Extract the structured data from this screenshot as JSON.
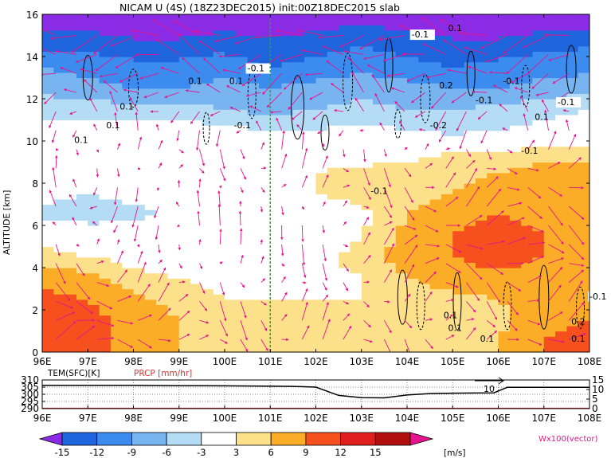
{
  "chart_data": [
    {
      "type": "heatmap",
      "title": "NICAM U (4S) (18Z23DEC2015) init:00Z18DEC2015 slab",
      "xlabel": "",
      "ylabel": "ALTITUDE [km]",
      "x_ticks": [
        "96E",
        "97E",
        "98E",
        "99E",
        "100E",
        "101E",
        "102E",
        "103E",
        "104E",
        "105E",
        "106E",
        "107E",
        "108E"
      ],
      "y_ticks": [
        "0",
        "2",
        "4",
        "6",
        "8",
        "10",
        "12",
        "14",
        "16"
      ],
      "xlim": [
        96,
        108
      ],
      "ylim": [
        0,
        16
      ],
      "marker_line_x": 101,
      "colorbar": {
        "levels": [
          -15,
          -12,
          -9,
          -6,
          -3,
          3,
          6,
          9,
          12,
          15
        ],
        "colors": [
          "#8a2be6",
          "#1e64dc",
          "#3c8cf0",
          "#78b4f0",
          "#b4dcf5",
          "#ffffff",
          "#fde08a",
          "#fcad28",
          "#f5501e",
          "#e01e1e",
          "#b40f0f",
          "#e6148c"
        ],
        "unit": "[m/s]"
      },
      "vector_label": "Wx100(vector)",
      "contour_labels": [
        "-0.1",
        "0.1",
        "0.2",
        "-0.2"
      ],
      "u_field": {
        "altitudes_km": [
          0.5,
          1.5,
          2.5,
          3.5,
          4.5,
          5.5,
          6.5,
          7.5,
          8.5,
          9.5,
          10.5,
          11.5,
          12.5,
          13.5,
          14.5,
          15.5
        ],
        "longitudes": [
          96,
          97,
          98,
          99,
          100,
          101,
          102,
          103,
          104,
          105,
          106,
          107,
          108
        ],
        "rows": [
          [
            12,
            10,
            8,
            6,
            4,
            4,
            4,
            5,
            4,
            5,
            6,
            9,
            10
          ],
          [
            11,
            10,
            8,
            6,
            4,
            3,
            3,
            4,
            4,
            4,
            5,
            8,
            9
          ],
          [
            10,
            9,
            7,
            5,
            3,
            3,
            3,
            3,
            3,
            5,
            6,
            7,
            8
          ],
          [
            8,
            7,
            4,
            3,
            2,
            2,
            2,
            3,
            6,
            8,
            8,
            8,
            9
          ],
          [
            5,
            3,
            2,
            1,
            1,
            1,
            2,
            4,
            8,
            9,
            10,
            9,
            8
          ],
          [
            1,
            0,
            0,
            0,
            0,
            0,
            1,
            3,
            7,
            9,
            11,
            9,
            8
          ],
          [
            -4,
            -5,
            -4,
            -2,
            -1,
            0,
            0,
            2,
            6,
            8,
            9,
            8,
            9
          ],
          [
            -2,
            -3,
            -2,
            -1,
            0,
            2,
            3,
            4,
            5,
            6,
            7,
            8,
            9
          ],
          [
            0,
            0,
            1,
            2,
            3,
            3,
            3,
            4,
            4,
            5,
            6,
            7,
            8
          ],
          [
            2,
            1,
            2,
            3,
            3,
            2,
            1,
            1,
            2,
            3,
            3,
            5,
            4
          ],
          [
            -2,
            -2,
            -1,
            -1,
            -2,
            -3,
            -3,
            -2,
            -3,
            -4,
            -3,
            -2,
            -1
          ],
          [
            -4,
            -4,
            -5,
            -5,
            -6,
            -7,
            -6,
            -5,
            -6,
            -6,
            -5,
            -4,
            -3
          ],
          [
            -7,
            -8,
            -9,
            -9,
            -8,
            -9,
            -8,
            -7,
            -8,
            -9,
            -9,
            -8,
            -7
          ],
          [
            -9,
            -10,
            -11,
            -11,
            -10,
            -12,
            -11,
            -10,
            -11,
            -12,
            -11,
            -10,
            -10
          ],
          [
            -13,
            -13,
            -14,
            -14,
            -13,
            -14,
            -13,
            -12,
            -13,
            -14,
            -14,
            -13,
            -12
          ],
          [
            -16,
            -16,
            -17,
            -17,
            -16,
            -16,
            -16,
            -15,
            -16,
            -17,
            -17,
            -16,
            -16
          ]
        ]
      }
    },
    {
      "type": "line",
      "title": "",
      "labels": {
        "left": "TEM(SFC)[K]",
        "right": "PRCP [mm/hr]"
      },
      "left_ticks": [
        "310",
        "305",
        "300",
        "295",
        "290"
      ],
      "right_ticks": [
        "15",
        "10",
        "5",
        "0"
      ],
      "x_ticks": [
        "96E",
        "97E",
        "98E",
        "99E",
        "100E",
        "101E",
        "102E",
        "103E",
        "104E",
        "105E",
        "106E",
        "107E",
        "108E"
      ],
      "ylim_left": [
        290,
        310
      ],
      "ylim_right": [
        0,
        15
      ],
      "series": [
        {
          "name": "TEM(SFC)[K]",
          "x": [
            96,
            97,
            98,
            99,
            100,
            100.9,
            101.5,
            102,
            102.5,
            103,
            103.5,
            104,
            104.5,
            105,
            105.5,
            105.9,
            106.2,
            106.6,
            107,
            108
          ],
          "y": [
            306.3,
            306.3,
            306.2,
            306.0,
            305.9,
            305.7,
            305.5,
            305.0,
            299.2,
            297.6,
            297.5,
            299.5,
            300.5,
            300.8,
            300.9,
            301.0,
            304.9,
            304.9,
            304.9,
            304.9
          ],
          "color": "#000000"
        },
        {
          "name": "PRCP [mm/hr]",
          "x": [
            96,
            97,
            98,
            99,
            100,
            101,
            102,
            103,
            104,
            105,
            106,
            107,
            108
          ],
          "y": [
            0,
            0,
            0,
            0,
            0,
            0,
            0,
            0,
            0,
            0,
            0,
            0,
            0
          ],
          "color": "#e03030"
        }
      ],
      "annotations": [
        "10"
      ]
    }
  ]
}
